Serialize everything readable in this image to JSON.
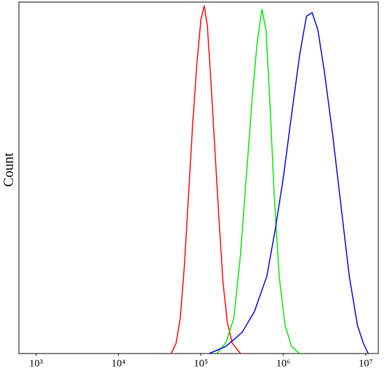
{
  "chart_data": {
    "type": "line",
    "y_label": "Count",
    "log_x": true,
    "xlim": [
      620,
      14200000
    ],
    "ylim": [
      0,
      100
    ],
    "xticks": [
      {
        "value": 1000,
        "label": "10³"
      },
      {
        "value": 10000,
        "label": "10⁴"
      },
      {
        "value": 100000,
        "label": "10⁵"
      },
      {
        "value": 1000000,
        "label": "10⁶"
      },
      {
        "value": 10000000,
        "label": "10⁷"
      }
    ],
    "series": [
      {
        "color": "#ff0000",
        "x": [
          43700,
          50100,
          56200,
          63100,
          70800,
          79400,
          89100,
          100000,
          110000,
          120000,
          132000,
          148000,
          166000,
          186000,
          209000,
          240000,
          302000
        ],
        "values": [
          0,
          3,
          10,
          25,
          45,
          65,
          82,
          95,
          99,
          93,
          78,
          58,
          38,
          20,
          9,
          3,
          0
        ]
      },
      {
        "color": "#00e600",
        "x": [
          155000,
          200000,
          251000,
          302000,
          355000,
          417000,
          479000,
          550000,
          617000,
          692000,
          776000,
          891000,
          1050000,
          1260000,
          1580000
        ],
        "values": [
          0,
          3,
          10,
          28,
          50,
          72,
          88,
          98,
          92,
          70,
          45,
          22,
          8,
          2,
          0
        ]
      },
      {
        "color": "#0000dd",
        "x": [
          126000,
          200000,
          316000,
          447000,
          631000,
          794000,
          1000000,
          1260000,
          1580000,
          1910000,
          2240000,
          2630000,
          3160000,
          3980000,
          5010000,
          6310000,
          7940000,
          9330000,
          10700000
        ],
        "values": [
          0,
          2,
          6,
          12,
          22,
          35,
          50,
          68,
          85,
          96,
          97,
          92,
          80,
          62,
          42,
          22,
          8,
          3,
          0
        ]
      }
    ]
  }
}
